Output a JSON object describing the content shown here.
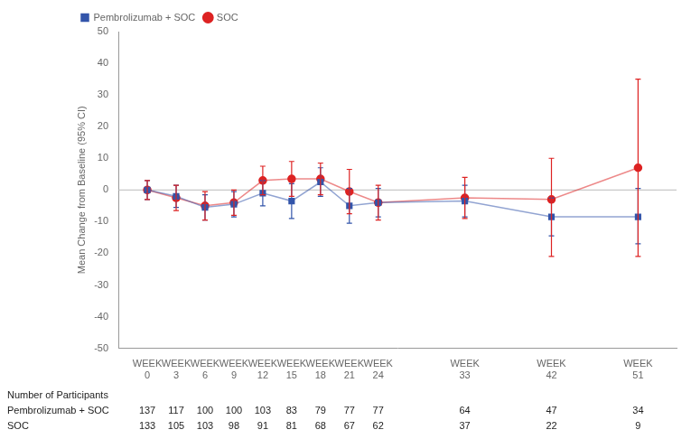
{
  "chart_data": {
    "type": "line",
    "ylabel": "Mean Change from Baseline (95% CI)",
    "x": [
      0,
      3,
      6,
      9,
      12,
      15,
      18,
      21,
      24,
      33,
      42,
      51
    ],
    "xlim": [
      -3,
      55
    ],
    "xticks": [
      {
        "value": 0,
        "label": "WEEK\n0"
      },
      {
        "value": 3,
        "label": "WEEK\n3"
      },
      {
        "value": 6,
        "label": "WEEK\n6"
      },
      {
        "value": 9,
        "label": "WEEK\n9"
      },
      {
        "value": 12,
        "label": "WEEK\n12"
      },
      {
        "value": 15,
        "label": "WEEK\n15"
      },
      {
        "value": 18,
        "label": "WEEK\n18"
      },
      {
        "value": 21,
        "label": "WEEK\n21"
      },
      {
        "value": 24,
        "label": "WEEK\n24"
      },
      {
        "value": 33,
        "label": "WEEK\n33"
      },
      {
        "value": 42,
        "label": "WEEK\n42"
      },
      {
        "value": 51,
        "label": "WEEK\n51"
      }
    ],
    "ylim": [
      -50,
      50
    ],
    "yticks": [
      -50,
      -40,
      -30,
      -20,
      -10,
      0,
      10,
      20,
      30,
      40,
      50
    ],
    "grid": false,
    "legend": "upper left",
    "reference_y": 0,
    "series": [
      {
        "name": "Pembrolizumab + SOC",
        "color": "#3355aa",
        "marker": "square",
        "line_style": "solid",
        "values": [
          0.0,
          -2.0,
          -5.5,
          -4.5,
          -1.0,
          -3.5,
          2.5,
          -5.0,
          -4.0,
          -3.5,
          -8.5,
          -8.5
        ],
        "ci_low": [
          -3.0,
          -5.5,
          -9.5,
          -8.5,
          -5.0,
          -9.0,
          -2.0,
          -10.5,
          -8.5,
          -8.5,
          -14.5,
          -17.0
        ],
        "ci_high": [
          3.0,
          1.5,
          -1.5,
          -0.5,
          3.0,
          2.0,
          7.0,
          0.5,
          0.5,
          1.5,
          -2.5,
          0.5
        ]
      },
      {
        "name": "SOC",
        "color": "#dd2222",
        "marker": "circle",
        "line_style": "solid",
        "values": [
          0.0,
          -2.5,
          -5.0,
          -4.0,
          3.0,
          3.5,
          3.5,
          -0.5,
          -4.0,
          -2.5,
          -3.0,
          7.0
        ],
        "ci_low": [
          -3.0,
          -6.5,
          -9.5,
          -8.0,
          -1.5,
          -2.0,
          -1.5,
          -7.5,
          -9.5,
          -9.0,
          -21.0,
          -21.0
        ],
        "ci_high": [
          3.0,
          1.5,
          -0.5,
          0.0,
          7.5,
          9.0,
          8.5,
          6.5,
          1.5,
          4.0,
          10.0,
          35.0
        ]
      }
    ],
    "table": {
      "title": "Number of Participants",
      "rows": [
        {
          "name": "Pembrolizumab + SOC",
          "values": [
            137,
            117,
            100,
            100,
            103,
            83,
            79,
            77,
            77,
            64,
            47,
            34
          ]
        },
        {
          "name": "SOC",
          "values": [
            133,
            105,
            103,
            98,
            91,
            81,
            68,
            67,
            62,
            37,
            22,
            9
          ]
        }
      ]
    }
  }
}
